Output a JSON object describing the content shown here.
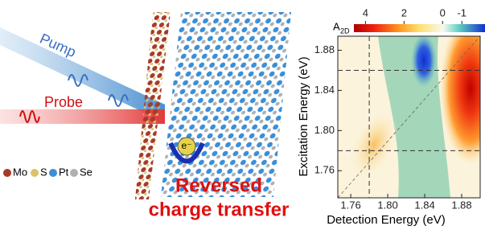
{
  "illustration": {
    "beams": [
      "Pump",
      "Probe"
    ],
    "electron": "e⁻",
    "legend": [
      "Mo",
      "S",
      "Pt",
      "Se"
    ],
    "caption": [
      "Reversed",
      "charge transfer"
    ]
  },
  "chart_data": {
    "type": "contour",
    "colorbar_label": "A",
    "colorbar_label_sub": "2D",
    "colorbar_lim": [
      4.6,
      -2.2
    ],
    "colorbar_ticks": [
      4,
      2,
      0,
      -1
    ],
    "xlabel": "Detection Energy (eV)",
    "ylabel": "Excitation Energy (eV)",
    "xlim": [
      1.746,
      1.9
    ],
    "ylim": [
      1.733,
      1.894
    ],
    "xticks": [
      1.76,
      {
        "value": 1.8,
        "label": "1.80"
      },
      1.84,
      1.88
    ],
    "yticks": [
      1.76,
      {
        "value": 1.8,
        "label": "1.80"
      },
      1.84,
      1.88
    ],
    "hlines": [
      1.78,
      1.86
    ],
    "vlines": [
      1.78
    ]
  }
}
